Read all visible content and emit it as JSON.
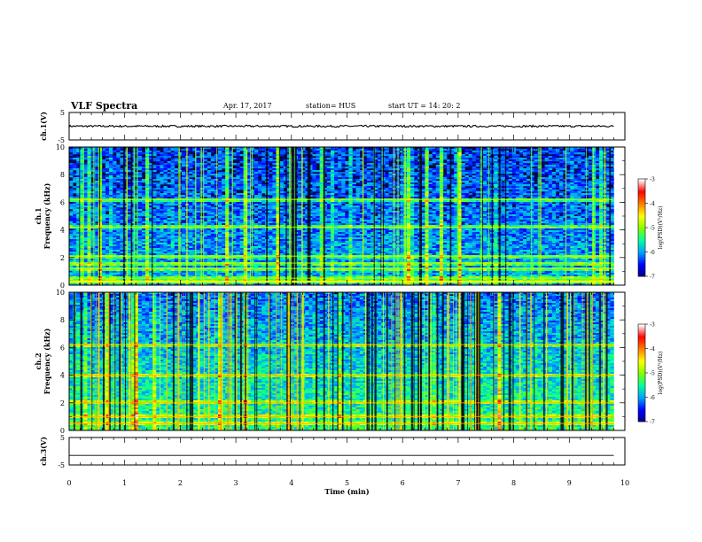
{
  "header": {
    "title": "VLF Spectra",
    "date": "Apr. 17, 2017",
    "station": "station= HUS",
    "start": "start UT = 14: 20: 2"
  },
  "colors": {
    "spec_background": "#000a50",
    "colormap": [
      "#000082",
      "#0000ff",
      "#00a0ff",
      "#00ffa0",
      "#80ff00",
      "#ffff00",
      "#ff8000",
      "#ff0000",
      "#ffffff"
    ]
  },
  "chart_data": [
    {
      "type": "line",
      "panel": "ch1-waveform",
      "ylabel": "ch.1(V)",
      "ylim": [
        -5,
        5
      ],
      "yticks": [
        "5",
        "-5"
      ],
      "series": [
        {
          "values": "noise band around ~0 V (approx ±0.3 V)"
        }
      ]
    },
    {
      "type": "heatmap",
      "panel": "ch1-spectrogram",
      "ylabel": "ch.1 Frequency (kHz)",
      "ylim": [
        0,
        10
      ],
      "yticks": [
        "0",
        "2",
        "4",
        "6",
        "8",
        "10"
      ],
      "colorbar": {
        "label": "log(PSD)(V²/Hz)",
        "range": [
          -7,
          -3
        ],
        "ticks": [
          "-3",
          "-4",
          "-5",
          "-6",
          "-7"
        ]
      },
      "bands_khz": [
        0.3,
        0.5,
        1.2,
        1.6,
        2.1,
        4.2,
        6.2
      ]
    },
    {
      "type": "heatmap",
      "panel": "ch2-spectrogram",
      "ylabel": "ch.2 Frequency (kHz)",
      "ylim": [
        0,
        10
      ],
      "yticks": [
        "0",
        "2",
        "4",
        "6",
        "8",
        "10"
      ],
      "colorbar": {
        "label": "log(PSD)(V²/Hz)",
        "range": [
          -7,
          -3
        ],
        "ticks": [
          "-3",
          "-4",
          "-5",
          "-6",
          "-7"
        ]
      },
      "bands_khz": [
        0.5,
        1.0,
        2.0,
        4.0,
        6.2
      ]
    },
    {
      "type": "line",
      "panel": "ch3-waveform",
      "ylabel": "ch.3(V)",
      "ylim": [
        -5,
        5
      ],
      "yticks": [
        "5",
        "-5"
      ],
      "series": [
        {
          "values": "flat at approx -1.5 V"
        }
      ]
    }
  ],
  "xaxis": {
    "label": "Time (min)",
    "range": [
      0,
      10
    ],
    "data_end": 9.8,
    "ticks": [
      "0",
      "1",
      "2",
      "3",
      "4",
      "5",
      "6",
      "7",
      "8",
      "9",
      "10"
    ]
  }
}
